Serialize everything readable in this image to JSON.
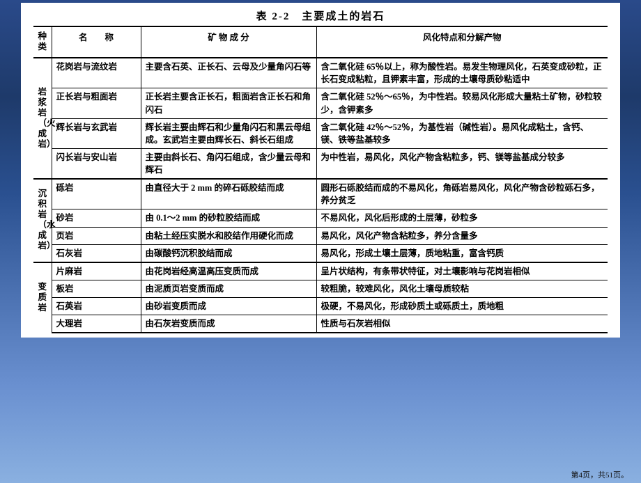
{
  "title": "表 2-2　主要成土的岩石",
  "footer": "第4页，共51页。",
  "headers": {
    "category": "种类",
    "name": "名　　称",
    "composition": "矿 物 成 分",
    "weathering": "风化特点和分解产物"
  },
  "categories": [
    {
      "label": "岩浆岩（火成岩）",
      "rows": [
        {
          "name": "花岗岩与流纹岩",
          "composition": "主要含石英、正长石、云母及少量角闪石等",
          "weathering": "含二氧化硅 65％以上，称为酸性岩。易发生物理风化，石英变成砂粒，正长石变成粘粒，且钾素丰富，形成的土壤母质砂粘适中"
        },
        {
          "name": "正长岩与粗面岩",
          "composition": "正长岩主要含正长石，粗面岩含正长石和角闪石",
          "weathering": "含二氧化硅 52％～65％，为中性岩。较易风化形成大量粘土矿物，砂粒较少，含钾素多"
        },
        {
          "name": "辉长岩与玄武岩",
          "composition": "辉长岩主要由辉石和少量角闪石和黑云母组成。玄武岩主要由辉长石、斜长石组成",
          "weathering": "含二氧化硅 42％～52％，为基性岩（碱性岩）。易风化成粘土，含钙、镁、铁等盐基较多"
        },
        {
          "name": "闪长岩与安山岩",
          "composition": "主要由斜长石、角闪石组成，含少量云母和辉石",
          "weathering": "为中性岩，易风化，风化产物含粘粒多，钙、镁等盐基成分较多"
        }
      ]
    },
    {
      "label": "沉积岩（水成岩）",
      "rows": [
        {
          "name": "砾岩",
          "composition": "由直径大于 2 mm 的碎石砾胶结而成",
          "weathering": "圆形石砾胶结而成的不易风化，角砾岩易风化，风化产物含砂粒砾石多，养分贫乏"
        },
        {
          "name": "砂岩",
          "composition": "由 0.1～2 mm 的砂粒胶结而成",
          "weathering": "不易风化，风化后形成的土层薄，砂粒多"
        },
        {
          "name": "页岩",
          "composition": "由粘土经压实脱水和胶结作用硬化而成",
          "weathering": "易风化，风化产物含粘粒多，养分含量多"
        },
        {
          "name": "石灰岩",
          "composition": "由碳酸钙沉积胶结而成",
          "weathering": "易风化，形成土壤土层薄，质地粘重，富含钙质"
        }
      ]
    },
    {
      "label": "变质岩",
      "rows": [
        {
          "name": "片麻岩",
          "composition": "由花岗岩经高温高压变质而成",
          "weathering": "呈片状结构，有条带状特征，对土壤影响与花岗岩相似"
        },
        {
          "name": "板岩",
          "composition": "由泥质页岩变质而成",
          "weathering": "较粗脆，较难风化，风化土壤母质较粘"
        },
        {
          "name": "石英岩",
          "composition": "由砂岩变质而成",
          "weathering": "极硬，不易风化，形成砂质土或砾质土，质地粗"
        },
        {
          "name": "大理岩",
          "composition": "由石灰岩变质而成",
          "weathering": "性质与石灰岩相似"
        }
      ]
    }
  ]
}
